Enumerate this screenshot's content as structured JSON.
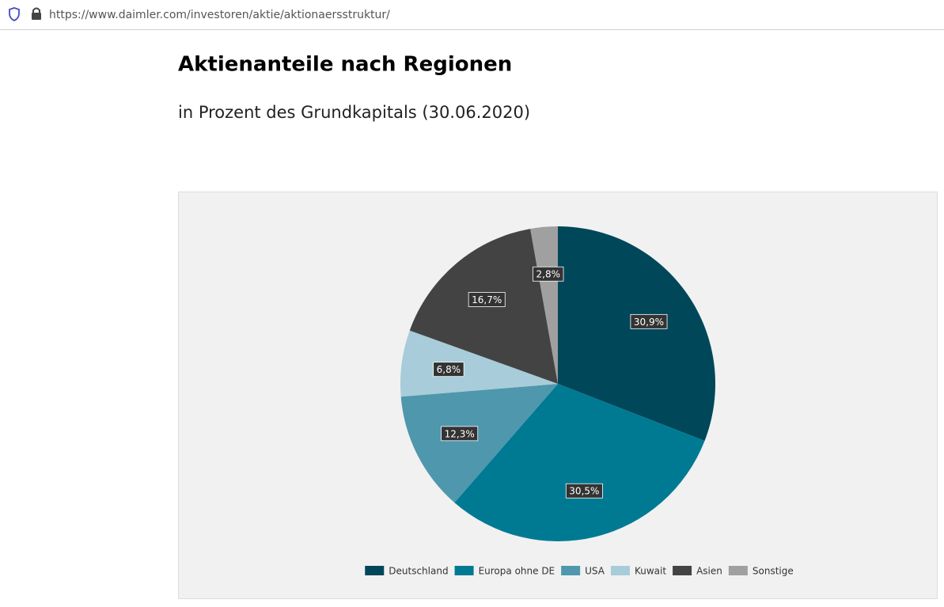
{
  "browser": {
    "url": "https://www.daimler.com/investoren/aktie/aktionaersstruktur/"
  },
  "chart_data": {
    "type": "pie",
    "title": "Aktienanteile nach Regionen",
    "subtitle": "in Prozent des Grundkapitals (30.06.2020)",
    "categories": [
      "Deutschland",
      "Europa ohne DE",
      "USA",
      "Kuwait",
      "Asien",
      "Sonstige"
    ],
    "values": [
      30.9,
      30.5,
      12.3,
      6.8,
      16.7,
      2.8
    ],
    "value_labels": [
      "30,9%",
      "30,5%",
      "12,3%",
      "6,8%",
      "16,7%",
      "2,8%"
    ],
    "colors": [
      "#00475a",
      "#007a93",
      "#4f97ad",
      "#a8ccd9",
      "#434343",
      "#a0a0a0"
    ],
    "legend": "bottom"
  }
}
